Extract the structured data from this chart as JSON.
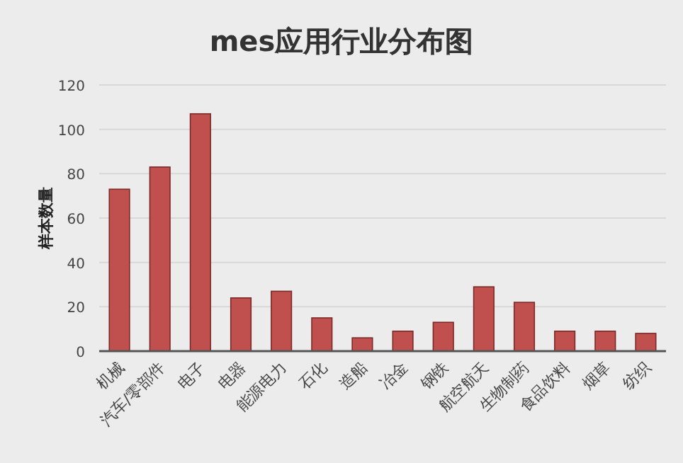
{
  "chart_data": {
    "type": "bar",
    "title": "mes应用行业分布图",
    "ylabel": "样本数量",
    "categories": [
      "机械",
      "汽车/零部件",
      "电子",
      "电器",
      "能源电力",
      "石化",
      "造船",
      "冶金",
      "钢铁",
      "航空航天",
      "生物制药",
      "食品饮料",
      "烟草",
      "纺织"
    ],
    "values": [
      73,
      83,
      107,
      24,
      27,
      15,
      6,
      9,
      13,
      29,
      22,
      9,
      9,
      8
    ],
    "color": "#c0504d",
    "ylim": [
      0,
      120
    ],
    "yticks": [
      0,
      20,
      40,
      60,
      80,
      100,
      120
    ],
    "grid": "y"
  }
}
